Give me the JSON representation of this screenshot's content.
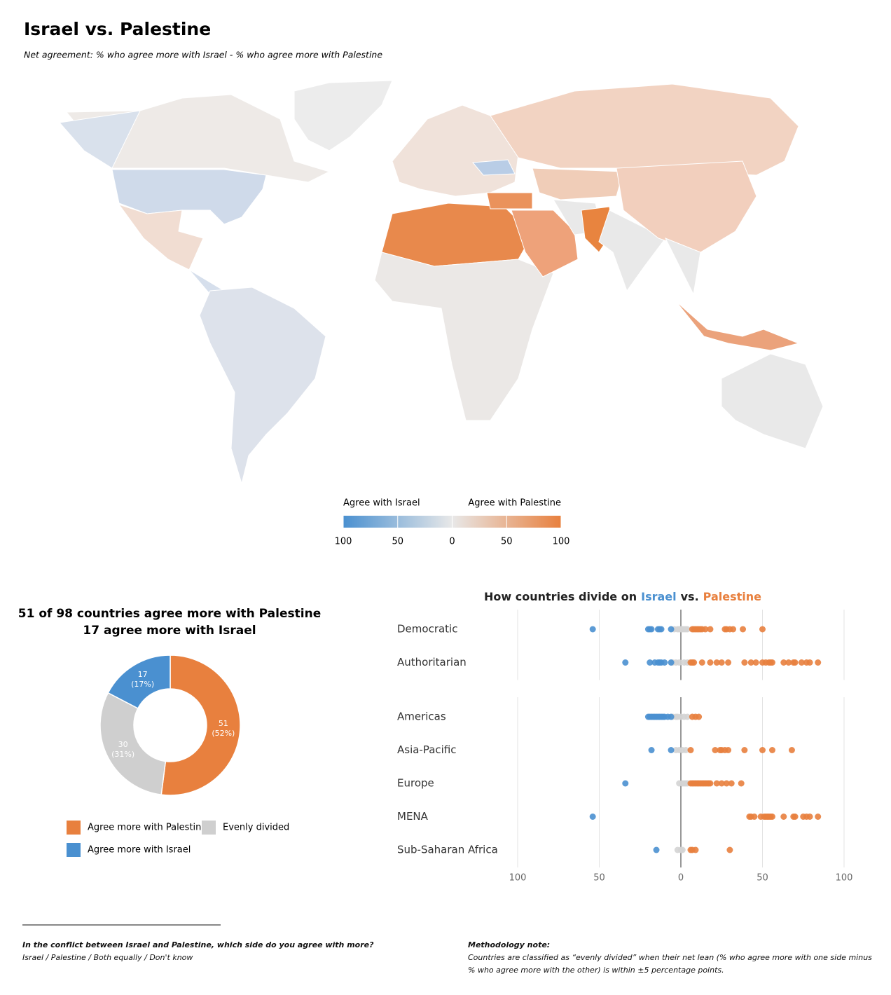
{
  "title": "Israel vs. Palestine",
  "subtitle": "Net agreement: % who agree more with Israel - % who agree more with Palestine",
  "chart_data": [
    {
      "type": "colorbar",
      "left_label": "Agree with Israel",
      "right_label": "Agree with Palestine",
      "colors": [
        "#4a90d0",
        "#e8e8e8",
        "#e8803e"
      ],
      "xlim": [
        100,
        -100
      ],
      "xticks": [
        100,
        50,
        0,
        {
          "value": -50,
          "label": "50"
        },
        {
          "value": -100,
          "label": "100"
        }
      ]
    },
    {
      "type": "pie",
      "donut": true,
      "title": [
        "51 of 98 countries agree more with Palestine",
        "17 agree more with Israel"
      ],
      "categories": [
        "Agree more with Palestine",
        "Evenly divided",
        "Agree more with Israel"
      ],
      "values": [
        51,
        30,
        17
      ],
      "value_labels": [
        [
          "51",
          "(52%)"
        ],
        [
          "30",
          "(31%)"
        ],
        [
          "17",
          "(17%)"
        ]
      ],
      "colors": [
        "#e8803e",
        "#cfcfcf",
        "#4a90d0"
      ]
    },
    {
      "type": "strip",
      "title": [
        "How countries divide on",
        "Israel",
        "vs.",
        "Palestine"
      ],
      "colors": {
        "israel": "#4a90d0",
        "even": "#d4d4d4",
        "palestine": "#e8803e"
      },
      "xlim": [
        100,
        -100
      ],
      "xticks": [
        100,
        50,
        0,
        {
          "value": -50,
          "label": "50"
        },
        {
          "value": -100,
          "label": "100"
        }
      ],
      "panels": [
        {
          "rows": [
            {
              "name": "Democratic",
              "israel": [
                54,
                20,
                19,
                18,
                14,
                13,
                12,
                6
              ],
              "even": [
                4,
                2,
                1,
                0,
                -1,
                -2,
                -3,
                -4
              ],
              "palestine": [
                -7,
                -8,
                -9,
                -10,
                -11,
                -12,
                -13,
                -15,
                -18,
                -27,
                -28,
                -30,
                -32,
                -38,
                -50
              ]
            },
            {
              "name": "Authoritarian",
              "israel": [
                34,
                19,
                16,
                14,
                13,
                12,
                10,
                6
              ],
              "even": [
                5,
                3,
                1,
                -2,
                -4
              ],
              "palestine": [
                -6,
                -7,
                -8,
                -13,
                -18,
                -22,
                -25,
                -29,
                -39,
                -43,
                -46,
                -50,
                -52,
                -54,
                -55,
                -56,
                -63,
                -66,
                -69,
                -70,
                -74,
                -77,
                -79,
                -84
              ]
            }
          ]
        },
        {
          "rows": [
            {
              "name": "Americas",
              "israel": [
                20,
                19,
                18,
                17,
                16,
                15,
                14,
                13,
                12,
                11,
                10,
                8,
                6
              ],
              "even": [
                5,
                3,
                2,
                0,
                -2,
                -4
              ],
              "palestine": [
                -7,
                -9,
                -11
              ]
            },
            {
              "name": "Asia-Pacific",
              "israel": [
                18,
                6
              ],
              "even": [
                3,
                1,
                -1,
                -3
              ],
              "palestine": [
                -6,
                -21,
                -24,
                -25,
                -27,
                -29,
                -39,
                -50,
                -56,
                -68
              ]
            },
            {
              "name": "Europe",
              "israel": [
                34
              ],
              "even": [
                1,
                -1,
                -2,
                -3,
                -4
              ],
              "palestine": [
                -6,
                -7,
                -8,
                -9,
                -10,
                -11,
                -12,
                -13,
                -14,
                -15,
                -16,
                -17,
                -18,
                -22,
                -25,
                -28,
                -31,
                -37
              ]
            },
            {
              "name": "MENA",
              "israel": [
                54
              ],
              "even": [],
              "palestine": [
                -42,
                -43,
                -45,
                -49,
                -51,
                -52,
                -53,
                -54,
                -55,
                -56,
                -63,
                -69,
                -70,
                -75,
                -77,
                -79,
                -84
              ]
            },
            {
              "name": "Sub-Saharan Africa",
              "israel": [
                15
              ],
              "even": [
                2,
                0,
                -1
              ],
              "palestine": [
                -6,
                -7,
                -9,
                -30
              ]
            }
          ]
        }
      ]
    }
  ],
  "notes": {
    "question": "In the conflict between Israel and Palestine, which side do you agree with more?",
    "options": "Israel / Palestine / Both equally / Don't know",
    "methodology_title": "Methodology note:",
    "methodology": "Countries are classified as “evenly divided” when their net lean (% who agree more with one side minus % who agree more with the other) is within ±5 percentage points."
  }
}
